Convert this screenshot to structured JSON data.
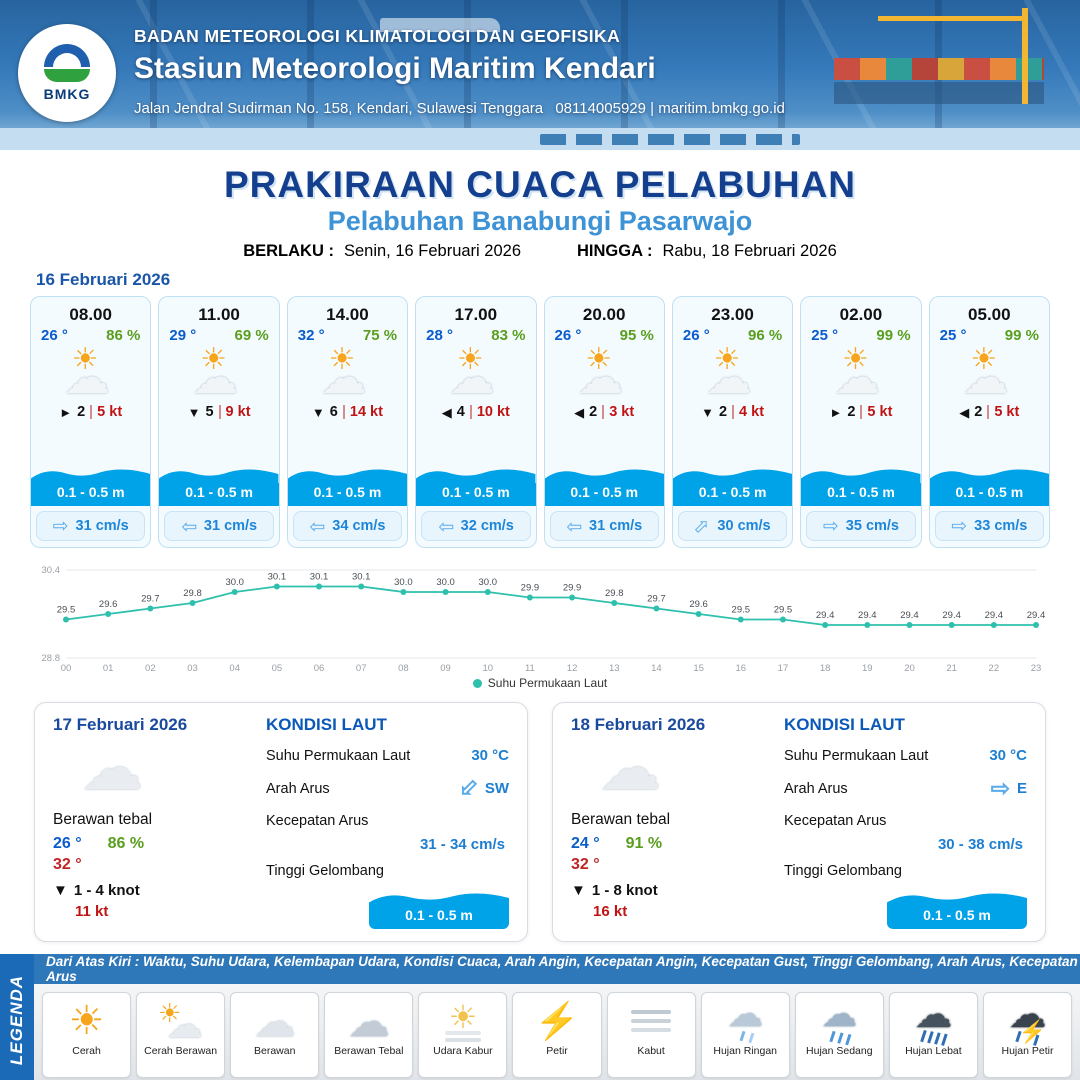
{
  "header": {
    "logo": "BMKG",
    "agency": "BADAN METEOROLOGI KLIMATOLOGI DAN GEOFISIKA",
    "station": "Stasiun Meteorologi Maritim Kendari",
    "address": "Jalan Jendral Sudirman No. 158, Kendari, Sulawesi Tenggara",
    "contact": "08114005929 | maritim.bmkg.go.id"
  },
  "title": {
    "main": "PRAKIRAAN CUACA PELABUHAN",
    "subtitle": "Pelabuhan Banabungi Pasarwajo",
    "valid_label": "BERLAKU :",
    "valid_value": "Senin, 16 Februari 2026",
    "until_label": "HINGGA :",
    "until_value": "Rabu, 18 Februari 2026"
  },
  "day1": {
    "date": "16 Februari 2026",
    "cards": [
      {
        "time": "08.00",
        "temp": "26 °",
        "rh": "86 %",
        "wind_arrow": "►",
        "wind": "2",
        "gust": "5 kt",
        "wave": "0.1 - 0.5 m",
        "current": "31 cm/s",
        "current_dir": "E"
      },
      {
        "time": "11.00",
        "temp": "29 °",
        "rh": "69 %",
        "wind_arrow": "▼",
        "wind": "5",
        "gust": "9 kt",
        "wave": "0.1 - 0.5 m",
        "current": "31 cm/s",
        "current_dir": "W"
      },
      {
        "time": "14.00",
        "temp": "32 °",
        "rh": "75 %",
        "wind_arrow": "▼",
        "wind": "6",
        "gust": "14 kt",
        "wave": "0.1 - 0.5 m",
        "current": "34 cm/s",
        "current_dir": "W"
      },
      {
        "time": "17.00",
        "temp": "28 °",
        "rh": "83 %",
        "wind_arrow": "◀",
        "wind": "4",
        "gust": "10 kt",
        "wave": "0.1 - 0.5 m",
        "current": "32 cm/s",
        "current_dir": "W"
      },
      {
        "time": "20.00",
        "temp": "26 °",
        "rh": "95 %",
        "wind_arrow": "◀",
        "wind": "2",
        "gust": "3 kt",
        "wave": "0.1 - 0.5 m",
        "current": "31 cm/s",
        "current_dir": "W"
      },
      {
        "time": "23.00",
        "temp": "26 °",
        "rh": "96 %",
        "wind_arrow": "▼",
        "wind": "2",
        "gust": "4 kt",
        "wave": "0.1 - 0.5 m",
        "current": "30 cm/s",
        "current_dir": "NE"
      },
      {
        "time": "02.00",
        "temp": "25 °",
        "rh": "99 %",
        "wind_arrow": "►",
        "wind": "2",
        "gust": "5 kt",
        "wave": "0.1 - 0.5 m",
        "current": "35 cm/s",
        "current_dir": "E"
      },
      {
        "time": "05.00",
        "temp": "25 °",
        "rh": "99 %",
        "wind_arrow": "◀",
        "wind": "2",
        "gust": "5 kt",
        "wave": "0.1 - 0.5 m",
        "current": "33 cm/s",
        "current_dir": "E"
      }
    ]
  },
  "chart_data": {
    "type": "line",
    "x": [
      "00",
      "01",
      "02",
      "03",
      "04",
      "05",
      "06",
      "07",
      "08",
      "09",
      "10",
      "11",
      "12",
      "13",
      "14",
      "15",
      "16",
      "17",
      "18",
      "19",
      "20",
      "21",
      "22",
      "23"
    ],
    "values": [
      29.5,
      29.6,
      29.7,
      29.8,
      30.0,
      30.1,
      30.1,
      30.1,
      30.0,
      30.0,
      30.0,
      29.9,
      29.9,
      29.8,
      29.7,
      29.6,
      29.5,
      29.5,
      29.4,
      29.4,
      29.4,
      29.4,
      29.4,
      29.4
    ],
    "ylim": [
      28.8,
      30.4
    ],
    "ylabel": "",
    "xlabel": "",
    "legend": "Suhu Permukaan Laut",
    "legend_position": "bottom",
    "grid": true,
    "color": "#2fc0ad"
  },
  "days": [
    {
      "date": "17 Februari 2026",
      "condition": "Berawan tebal",
      "temp_min": "26 °",
      "rh": "86 %",
      "temp_max": "32 °",
      "wind_arrow": "▼",
      "wind": "1 - 4 knot",
      "gust": "11 kt",
      "sea": {
        "title": "KONDISI LAUT",
        "sst_label": "Suhu Permukaan Laut",
        "sst": "30 °C",
        "dir_label": "Arah Arus",
        "dir": "SW",
        "dir_code": "SW",
        "speed_label": "Kecepatan Arus",
        "speed": "31 - 34 cm/s",
        "wave_label": "Tinggi Gelombang",
        "wave": "0.1 - 0.5 m"
      }
    },
    {
      "date": "18 Februari 2026",
      "condition": "Berawan tebal",
      "temp_min": "24 °",
      "rh": "91 %",
      "temp_max": "32 °",
      "wind_arrow": "▼",
      "wind": "1 - 8 knot",
      "gust": "16 kt",
      "sea": {
        "title": "KONDISI LAUT",
        "sst_label": "Suhu Permukaan Laut",
        "sst": "30 °C",
        "dir_label": "Arah Arus",
        "dir": "E",
        "dir_code": "E",
        "speed_label": "Kecepatan Arus",
        "speed": "30 - 38 cm/s",
        "wave_label": "Tinggi Gelombang",
        "wave": "0.1 - 0.5 m"
      }
    }
  ],
  "legend": {
    "sidebar": "LEGENDA",
    "strip": "Dari Atas Kiri : Waktu, Suhu Udara, Kelembapan Udara, Kondisi Cuaca, Arah Angin, Kecepatan Angin, Kecepatan Gust, Tinggi Gelombang, Arah Arus, Kecepatan Arus",
    "items": [
      {
        "label": "Cerah",
        "icon": "sun"
      },
      {
        "label": "Cerah Berawan",
        "icon": "sun-cloud"
      },
      {
        "label": "Berawan",
        "icon": "cloud"
      },
      {
        "label": "Berawan Tebal",
        "icon": "cloud-thick"
      },
      {
        "label": "Udara Kabur",
        "icon": "haze"
      },
      {
        "label": "Petir",
        "icon": "bolt"
      },
      {
        "label": "Kabut",
        "icon": "fog"
      },
      {
        "label": "Hujan Ringan",
        "icon": "rain-light"
      },
      {
        "label": "Hujan Sedang",
        "icon": "rain-med"
      },
      {
        "label": "Hujan Lebat",
        "icon": "rain-heavy"
      },
      {
        "label": "Hujan Petir",
        "icon": "storm"
      }
    ]
  }
}
